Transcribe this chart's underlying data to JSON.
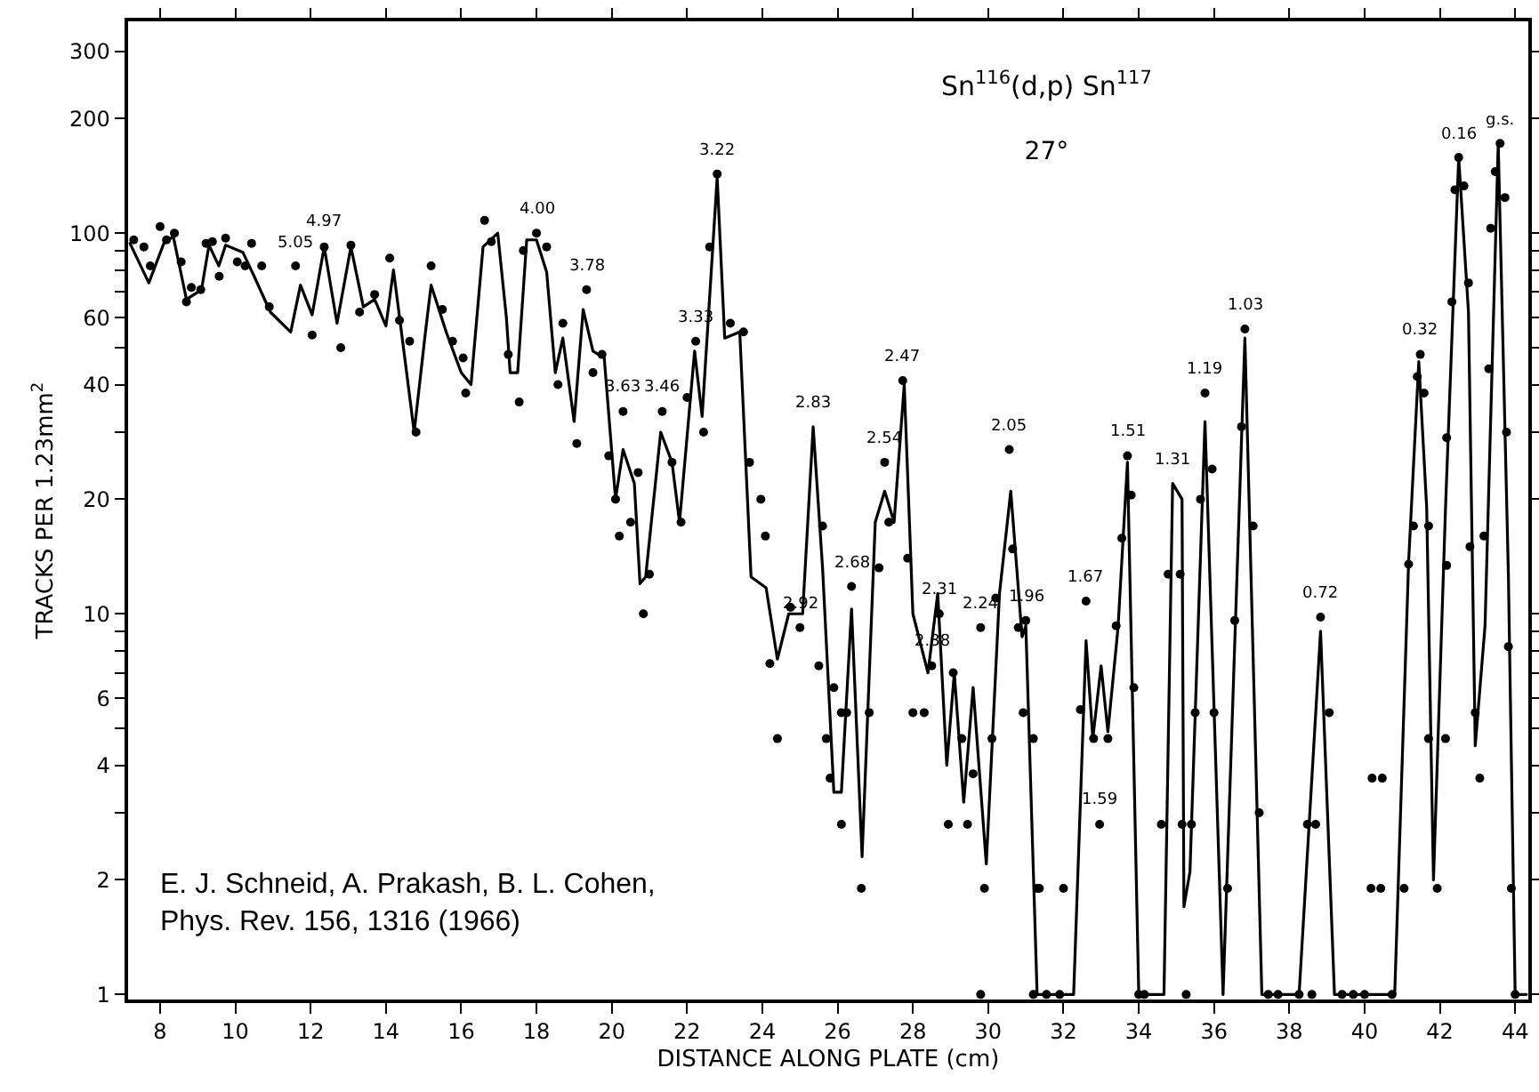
{
  "chart_data": {
    "type": "line",
    "title": "Sn$^{116}$(d,p) Sn$^{117}$",
    "subtitle": "27°",
    "xlabel": "DISTANCE ALONG PLATE (cm)",
    "ylabel": "TRACKS PER 1.23mm$^{2}$",
    "log": "y",
    "grid": false,
    "xlim": [
      7.15,
      44.35
    ],
    "xticks": [
      8,
      10,
      12,
      14,
      16,
      18,
      20,
      22,
      24,
      26,
      28,
      30,
      32,
      34,
      36,
      38,
      40,
      42,
      44
    ],
    "ylim": [
      0.97,
      360
    ],
    "yticks": [
      1,
      2,
      {
        "value": 3,
        "label": null
      },
      4,
      {
        "value": 5,
        "label": null
      },
      6,
      {
        "value": 7,
        "label": null
      },
      {
        "value": 8,
        "label": null
      },
      {
        "value": 9,
        "label": null
      },
      10,
      20,
      {
        "value": 30,
        "label": null
      },
      40,
      {
        "value": 50,
        "label": null
      },
      60,
      {
        "value": 70,
        "label": null
      },
      {
        "value": 80,
        "label": null
      },
      {
        "value": 90,
        "label": null
      },
      100,
      200,
      300
    ],
    "series": [
      {
        "color": "#000000",
        "marker": "none",
        "line_style": "solid",
        "x": [
          7.2,
          7.7,
          8.1,
          8.35,
          8.7,
          9.1,
          9.3,
          9.56,
          9.74,
          10.2,
          10.5,
          10.93,
          11.47,
          11.73,
          12.04,
          12.36,
          12.7,
          13.07,
          13.4,
          13.7,
          14.0,
          14.2,
          14.5,
          14.75,
          15.05,
          15.2,
          15.6,
          16.0,
          16.26,
          16.58,
          16.97,
          17.2,
          17.3,
          17.5,
          17.74,
          18.0,
          18.27,
          18.5,
          18.7,
          19.0,
          19.24,
          19.5,
          19.8,
          20.1,
          20.3,
          20.6,
          20.75,
          20.9,
          21.3,
          21.6,
          21.8,
          22.2,
          22.4,
          22.8,
          23.0,
          23.4,
          23.7,
          24.1,
          24.4,
          24.7,
          25.07,
          25.35,
          25.6,
          25.9,
          26.1,
          26.37,
          26.65,
          27.0,
          27.25,
          27.5,
          27.77,
          28.0,
          28.4,
          28.66,
          28.9,
          29.1,
          29.35,
          29.6,
          29.95,
          30.3,
          30.6,
          30.9,
          31.0,
          31.3,
          32.27,
          32.6,
          32.78,
          33.0,
          33.18,
          33.45,
          33.7,
          34.0,
          34.67,
          34.9,
          35.15,
          35.2,
          35.36,
          35.76,
          36.24,
          36.82,
          37.27,
          38.26,
          38.83,
          39.2,
          40.8,
          41.17,
          41.44,
          41.65,
          41.83,
          42.15,
          42.5,
          42.76,
          42.94,
          43.2,
          43.55,
          43.82,
          44.0,
          44.3
        ],
        "values": [
          94,
          74,
          94,
          98,
          67,
          71,
          93,
          82,
          93,
          89,
          77,
          62,
          55,
          73,
          61,
          92,
          58,
          92,
          64,
          67,
          57,
          80,
          47,
          30,
          55,
          73,
          55,
          43,
          40,
          92,
          100,
          60,
          43,
          43,
          96,
          96,
          79,
          43,
          53,
          32,
          63,
          49,
          47,
          20,
          27,
          22,
          12,
          12.5,
          30,
          25,
          17.4,
          49,
          33,
          140,
          53,
          55,
          12.5,
          11.7,
          7.6,
          10,
          10,
          31,
          13.2,
          3.4,
          3.4,
          10.3,
          2.3,
          17.4,
          21,
          17.4,
          40,
          10,
          7,
          11.3,
          4,
          7,
          3.2,
          6.4,
          2.2,
          11.3,
          21,
          8.7,
          9.3,
          1,
          1,
          8.5,
          4.7,
          7.3,
          4.9,
          9.2,
          25,
          1,
          1,
          22,
          20,
          1.7,
          2.1,
          32,
          1,
          53,
          1,
          1,
          9,
          1,
          1,
          13.7,
          46,
          19,
          2,
          19,
          158,
          62,
          4.5,
          9.3,
          172,
          12.7,
          1,
          1
        ]
      },
      {
        "type": "scatter",
        "color": "#000000",
        "marker": "circle",
        "x": [
          20.3,
          7.3,
          7.57,
          7.74,
          8.0,
          8.17,
          8.38,
          8.56,
          8.7,
          8.83,
          9.08,
          9.22,
          9.39,
          9.57,
          9.74,
          10.05,
          10.26,
          10.43,
          10.7,
          10.9,
          11.6,
          12.04,
          12.36,
          12.8,
          13.07,
          13.3,
          13.7,
          14.1,
          14.36,
          14.63,
          14.8,
          15.2,
          15.5,
          15.77,
          16.05,
          16.12,
          16.62,
          16.8,
          17.25,
          17.54,
          17.65,
          18.0,
          18.27,
          18.57,
          18.7,
          19.07,
          19.33,
          19.5,
          19.74,
          19.92,
          20.1,
          20.2,
          20.5,
          20.7,
          20.84,
          21.0,
          21.34,
          21.6,
          21.84,
          22.0,
          22.23,
          22.44,
          22.6,
          22.8,
          23.15,
          23.5,
          23.66,
          23.96,
          24.08,
          24.2,
          24.4,
          24.75,
          25.0,
          25.5,
          25.6,
          25.7,
          25.8,
          25.9,
          26.1,
          26.1,
          26.24,
          26.37,
          26.63,
          26.84,
          27.1,
          27.25,
          27.36,
          27.73,
          27.86,
          28.0,
          28.3,
          28.5,
          28.7,
          28.94,
          29.07,
          29.3,
          29.45,
          29.6,
          29.8,
          29.8,
          29.9,
          30.1,
          30.2,
          30.56,
          30.65,
          30.8,
          30.93,
          31.0,
          31.2,
          31.2,
          31.3,
          31.36,
          31.55,
          31.9,
          32.0,
          32.45,
          32.6,
          32.8,
          32.96,
          33.18,
          33.4,
          33.55,
          33.7,
          33.8,
          33.87,
          34.0,
          34.15,
          34.6,
          34.78,
          35.1,
          35.15,
          35.26,
          35.4,
          35.5,
          35.64,
          35.76,
          35.95,
          36.0,
          36.36,
          36.55,
          36.73,
          36.82,
          37.04,
          37.2,
          37.44,
          37.7,
          38.26,
          38.48,
          38.6,
          38.7,
          38.83,
          39.06,
          39.4,
          39.7,
          40.0,
          40.17,
          40.2,
          40.43,
          40.47,
          40.73,
          41.05,
          41.17,
          41.3,
          41.4,
          41.48,
          41.58,
          41.7,
          41.7,
          41.93,
          42.15,
          42.18,
          42.18,
          42.32,
          42.4,
          42.5,
          42.64,
          42.76,
          42.8,
          42.94,
          43.06,
          43.17,
          43.3,
          43.35,
          43.47,
          43.6,
          43.73,
          43.77,
          43.82,
          43.9,
          44.0
        ],
        "values": [
          34,
          96,
          92,
          82,
          104,
          96,
          100,
          84,
          66,
          72,
          71,
          94,
          95,
          77,
          97,
          84,
          82,
          94,
          82,
          64,
          82,
          54,
          92,
          50,
          93,
          62,
          69,
          86,
          59,
          52,
          30,
          82,
          63,
          52,
          47,
          38,
          108,
          95,
          48,
          36,
          90,
          100,
          92,
          40,
          58,
          28,
          71,
          43,
          48,
          26,
          20,
          16,
          17.4,
          23.5,
          10,
          12.7,
          34,
          25,
          17.4,
          37,
          52,
          30,
          92,
          143,
          58,
          55,
          25,
          20,
          16,
          7.4,
          4.7,
          10.4,
          9.2,
          7.3,
          17,
          4.7,
          3.7,
          6.4,
          5.5,
          2.8,
          5.5,
          11.8,
          1.9,
          5.5,
          13.2,
          25,
          17.4,
          41,
          14,
          5.5,
          5.5,
          7.3,
          10,
          2.8,
          7,
          4.7,
          2.8,
          3.8,
          9.2,
          1,
          1.9,
          4.7,
          11,
          27,
          14.8,
          9.2,
          5.5,
          9.6,
          4.7,
          1,
          1.9,
          1.9,
          1,
          1,
          1.9,
          5.6,
          10.8,
          4.7,
          2.8,
          4.7,
          9.3,
          15.8,
          26,
          20.5,
          6.4,
          1,
          1,
          2.8,
          12.7,
          12.7,
          2.8,
          1,
          2.8,
          5.5,
          20,
          38,
          24,
          5.5,
          1.9,
          9.6,
          31,
          56,
          17,
          3,
          1,
          1,
          1,
          2.8,
          1,
          2.8,
          9.8,
          5.5,
          1,
          1,
          1,
          1.9,
          3.7,
          1.9,
          3.7,
          1,
          1.9,
          13.5,
          17,
          42,
          48,
          38,
          17,
          4.7,
          1.9,
          4.7,
          13.4,
          29,
          66,
          130,
          158,
          133,
          74,
          15,
          5.5,
          3.7,
          16,
          44,
          103,
          145,
          172,
          124,
          30,
          8.2,
          1.9,
          1
        ]
      }
    ],
    "annotations": [
      {
        "text": "5.05",
        "x": 11.6,
        "y": 82
      },
      {
        "text": "4.97",
        "x": 12.36,
        "y": 92
      },
      {
        "text": "4.00",
        "x": 18.0,
        "y": 100
      },
      {
        "text": "3.78",
        "x": 19.33,
        "y": 71
      },
      {
        "text": "3.63",
        "x": 20.3,
        "y": 34
      },
      {
        "text": "3.46",
        "x": 21.34,
        "y": 34
      },
      {
        "text": "3.33",
        "x": 22.23,
        "y": 52
      },
      {
        "text": "3.22",
        "x": 22.8,
        "y": 143
      },
      {
        "text": "2.92",
        "x": 25.0,
        "y": 9.2
      },
      {
        "text": "2.83",
        "x": 25.35,
        "y": 31
      },
      {
        "text": "2.68",
        "x": 26.37,
        "y": 11.8
      },
      {
        "text": "2.54",
        "x": 27.25,
        "y": 25
      },
      {
        "text": "2.47",
        "x": 27.73,
        "y": 41
      },
      {
        "text": "2.38",
        "x": 28.5,
        "y": 7.3
      },
      {
        "text": "2.31",
        "x": 28.7,
        "y": 10
      },
      {
        "text": "2.24",
        "x": 29.8,
        "y": 9.2
      },
      {
        "text": "2.05",
        "x": 30.56,
        "y": 27
      },
      {
        "text": "1.96",
        "x": 31.0,
        "y": 9.6
      },
      {
        "text": "1.67",
        "x": 32.6,
        "y": 10.8
      },
      {
        "text": "1.59",
        "x": 32.96,
        "y": 2.8
      },
      {
        "text": "1.51",
        "x": 33.7,
        "y": 26
      },
      {
        "text": "1.31",
        "x": 34.9,
        "y": 22
      },
      {
        "text": "1.19",
        "x": 35.76,
        "y": 38
      },
      {
        "text": "1.03",
        "x": 36.82,
        "y": 56
      },
      {
        "text": "0.72",
        "x": 38.83,
        "y": 9.8
      },
      {
        "text": "0.32",
        "x": 41.48,
        "y": 48
      },
      {
        "text": "0.16",
        "x": 42.5,
        "y": 158
      },
      {
        "text": "g.s.",
        "x": 43.6,
        "y": 172
      },
      "E. J. Schneid, A. Prakash, B. L. Cohen,\nPhys. Rev. 156, 1316 (1966)"
    ]
  }
}
